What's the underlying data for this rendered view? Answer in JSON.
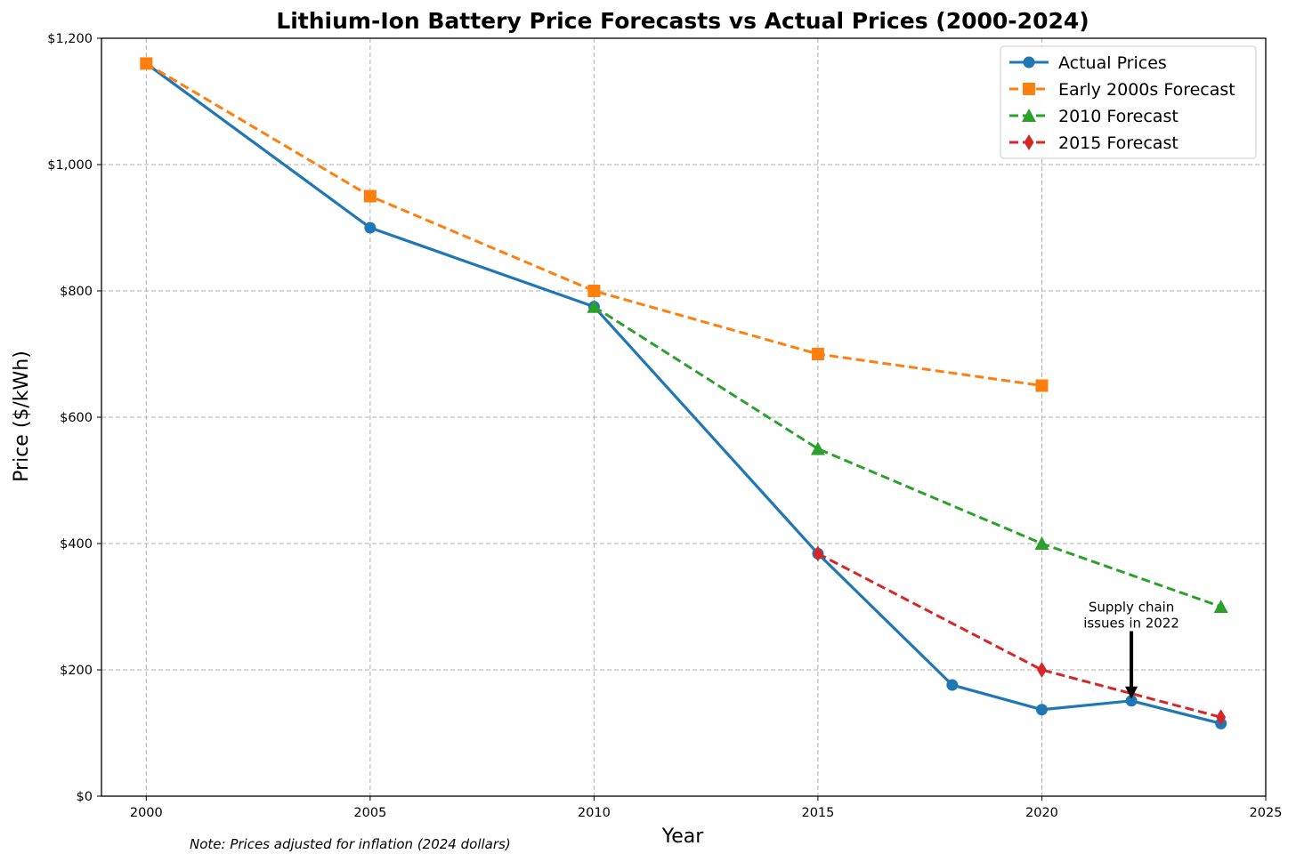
{
  "chart_data": {
    "type": "line",
    "title": "Lithium-Ion Battery Price Forecasts vs Actual Prices (2000-2024)",
    "xlabel": "Year",
    "ylabel": "Price ($/kWh)",
    "xlim": [
      1999,
      2025
    ],
    "ylim": [
      0,
      1200
    ],
    "x_ticks": [
      2000,
      2005,
      2010,
      2015,
      2020,
      2025
    ],
    "x_tick_labels": [
      "2000",
      "2005",
      "2010",
      "2015",
      "2020",
      "2025"
    ],
    "y_ticks": [
      0,
      200,
      400,
      600,
      800,
      1000,
      1200
    ],
    "y_tick_labels": [
      "$0",
      "$200",
      "$400",
      "$600",
      "$800",
      "$1,000",
      "$1,200"
    ],
    "grid": true,
    "legend_position": "top-right",
    "series": [
      {
        "name": "Actual Prices",
        "color": "#1f77b4",
        "marker": "circle",
        "line_style": "solid",
        "x": [
          2000,
          2005,
          2010,
          2015,
          2018,
          2020,
          2022,
          2024
        ],
        "y": [
          1160,
          900,
          775,
          384,
          176,
          137,
          151,
          115
        ]
      },
      {
        "name": "Early 2000s Forecast",
        "color": "#ff7f0e",
        "marker": "square",
        "line_style": "dashed",
        "x": [
          2000,
          2005,
          2010,
          2015,
          2020
        ],
        "y": [
          1160,
          950,
          800,
          700,
          650
        ]
      },
      {
        "name": "2010 Forecast",
        "color": "#2ca02c",
        "marker": "triangle",
        "line_style": "dashed",
        "x": [
          2010,
          2015,
          2020,
          2024
        ],
        "y": [
          775,
          550,
          400,
          300
        ]
      },
      {
        "name": "2015 Forecast",
        "color": "#d62728",
        "marker": "diamond",
        "line_style": "dashed",
        "x": [
          2015,
          2020,
          2024
        ],
        "y": [
          384,
          200,
          125
        ]
      }
    ],
    "annotations": [
      {
        "lines": [
          "Supply chain",
          "issues in 2022"
        ],
        "text_x": 2022,
        "text_y": 250,
        "arrow_to_x": 2022,
        "arrow_to_y": 151
      }
    ],
    "note": "Note: Prices adjusted for inflation (2024 dollars)"
  }
}
